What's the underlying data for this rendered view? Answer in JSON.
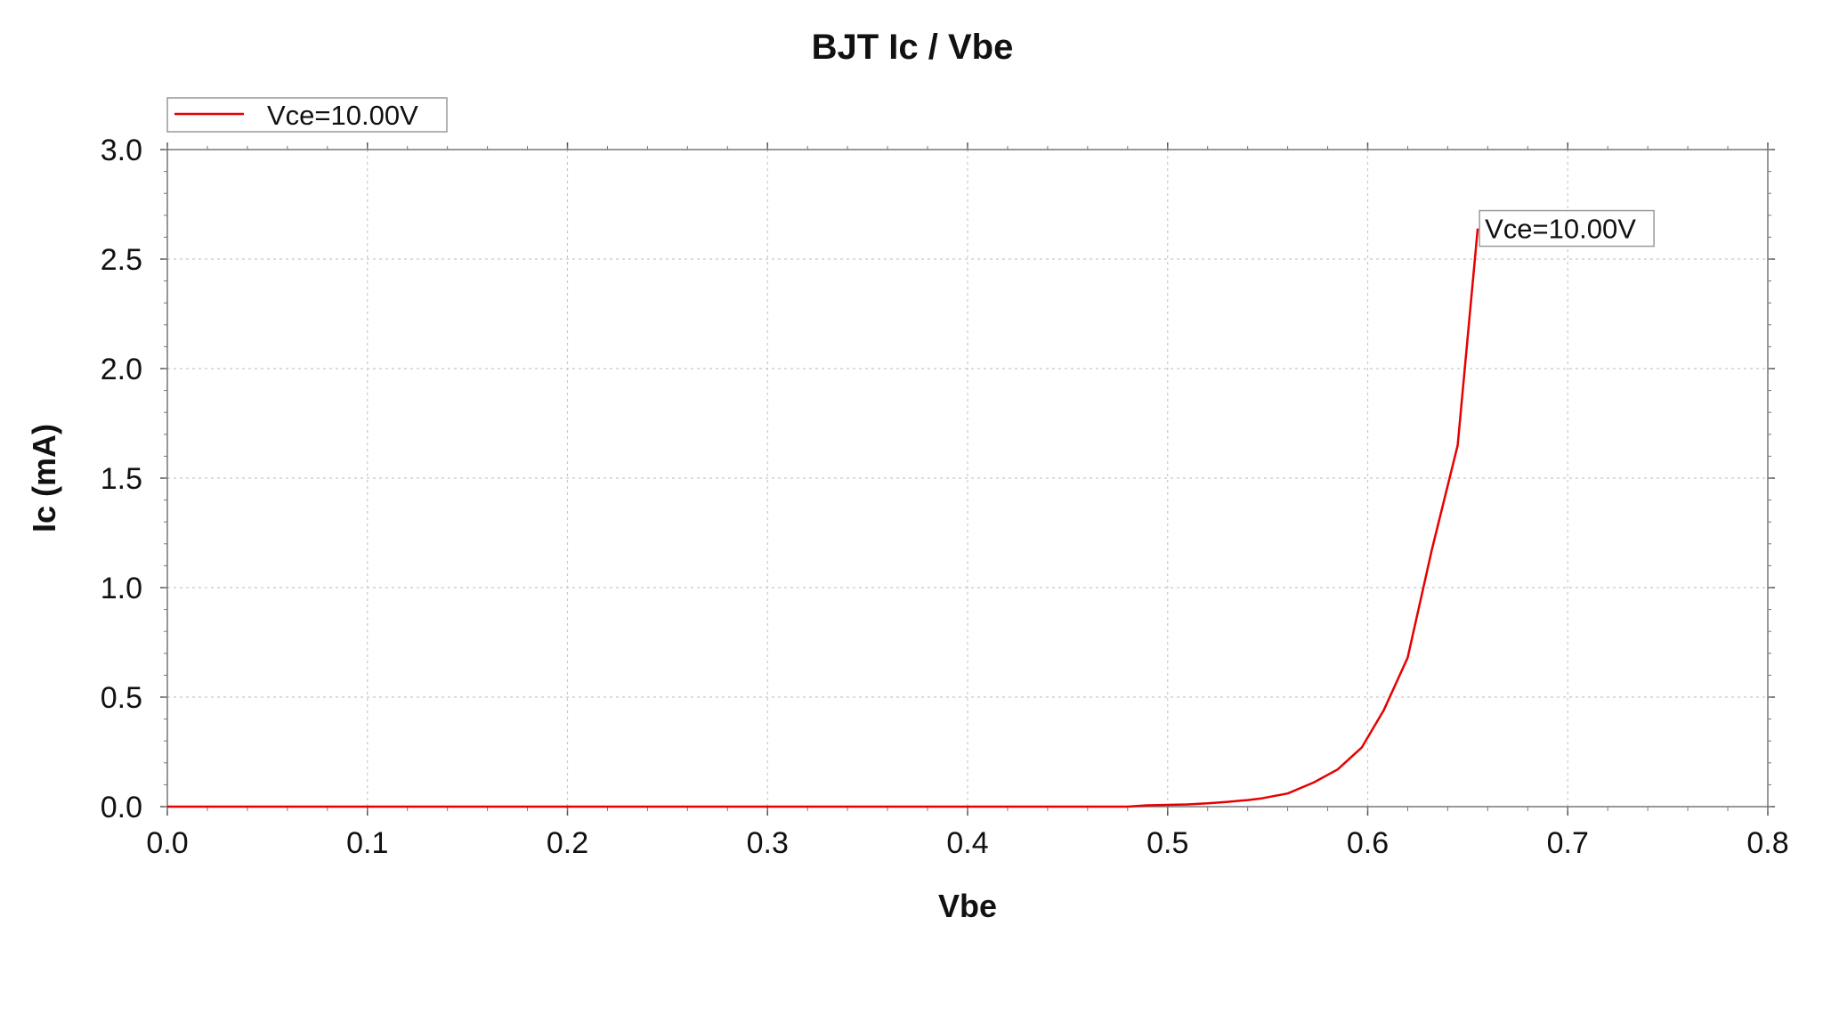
{
  "chart_data": {
    "type": "line",
    "title": "BJT Ic / Vbe",
    "xlabel": "Vbe",
    "ylabel": "Ic (mA)",
    "xlim": [
      0.0,
      0.8
    ],
    "ylim": [
      0.0,
      3.0
    ],
    "x_ticks": [
      "0.0",
      "0.1",
      "0.2",
      "0.3",
      "0.4",
      "0.5",
      "0.6",
      "0.7",
      "0.8"
    ],
    "y_ticks": [
      "0.0",
      "0.5",
      "1.0",
      "1.5",
      "2.0",
      "2.5",
      "3.0"
    ],
    "grid": true,
    "legend_position": "top-left",
    "series": [
      {
        "name": "Vce=10.00V",
        "color": "#e60000",
        "x": [
          0.0,
          0.1,
          0.2,
          0.3,
          0.4,
          0.48,
          0.49,
          0.5,
          0.51,
          0.52,
          0.53,
          0.54,
          0.547,
          0.56,
          0.573,
          0.585,
          0.597,
          0.608,
          0.62,
          0.632,
          0.645,
          0.655
        ],
        "y": [
          0.0,
          0.0,
          0.0,
          0.0,
          0.0,
          0.0,
          0.006,
          0.008,
          0.01,
          0.015,
          0.022,
          0.03,
          0.038,
          0.06,
          0.11,
          0.17,
          0.27,
          0.44,
          0.68,
          1.17,
          1.65,
          2.64
        ]
      }
    ],
    "annotations": [
      {
        "text": "Vce=10.00V",
        "x": 0.655,
        "y": 2.64
      }
    ]
  }
}
